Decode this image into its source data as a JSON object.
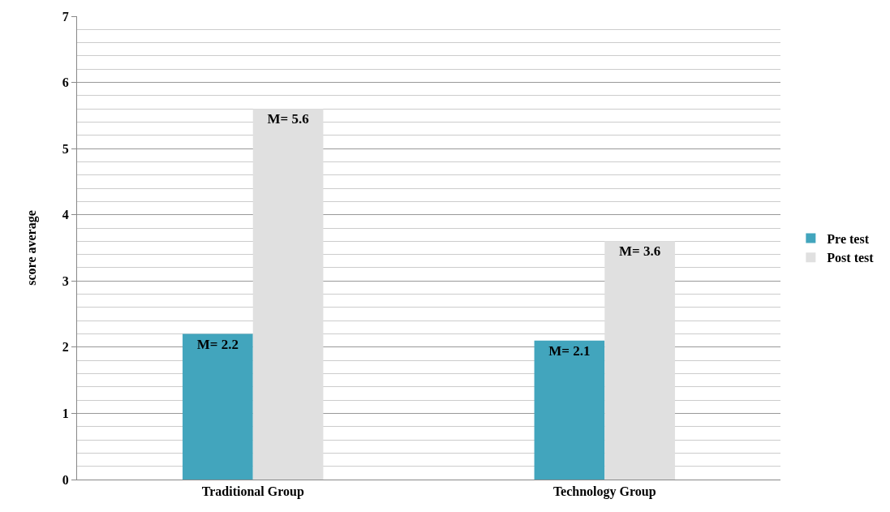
{
  "chart_data": {
    "type": "bar",
    "ylabel": "score average",
    "categories": [
      "Traditional Group",
      "Technology Group"
    ],
    "series": [
      {
        "name": "Pre test",
        "color": "#42a5bd",
        "values": [
          2.2,
          2.1
        ],
        "value_labels": [
          "M= 2.2",
          "M= 2.1"
        ]
      },
      {
        "name": "Post test",
        "color": "#e0e0e0",
        "values": [
          5.6,
          3.6
        ],
        "value_labels": [
          "M= 5.6",
          "M= 3.6"
        ]
      }
    ],
    "ylim": [
      0,
      7
    ],
    "yticks": [
      0,
      1,
      2,
      3,
      4,
      5,
      6,
      7
    ],
    "grid": "y",
    "legend": "right"
  }
}
